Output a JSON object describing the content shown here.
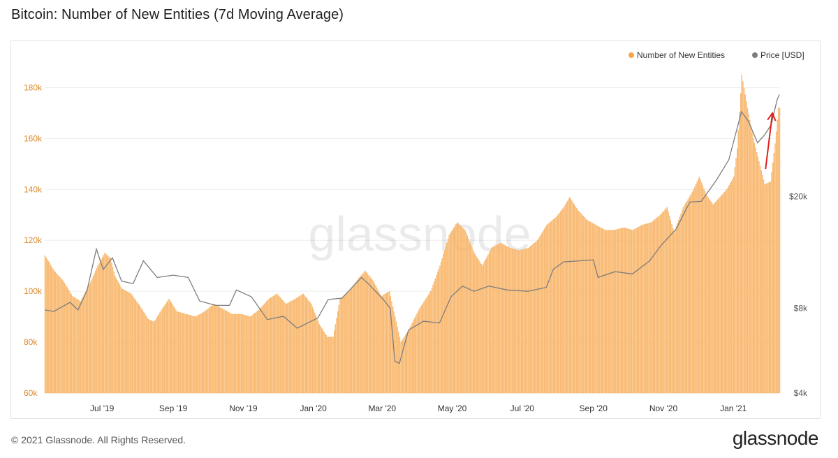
{
  "page": {
    "title": "Bitcoin: Number of New Entities (7d Moving Average)",
    "copyright": "© 2021 Glassnode. All Rights Reserved.",
    "logo_text": "glassnode",
    "watermark": "glassnode"
  },
  "colors": {
    "bar": "#f7a546",
    "bar_fill": "#f9c48a",
    "price": "#7d7d7d",
    "arrow": "#e0201b",
    "left_axis": "#d98a2e",
    "right_axis": "#555555",
    "grid": "#eeeeee"
  },
  "chart_data": {
    "type": "bar",
    "title": "Bitcoin: Number of New Entities (7d Moving Average)",
    "legend": {
      "position": "top-right",
      "entries": [
        {
          "name": "Number of New Entities",
          "color": "#f7a546"
        },
        {
          "name": "Price [USD]",
          "color": "#7d7d7d"
        }
      ]
    },
    "x_ticks": [
      "Jul '19",
      "Sep '19",
      "Nov '19",
      "Jan '20",
      "Mar '20",
      "May '20",
      "Jul '20",
      "Sep '20",
      "Nov '20",
      "Jan '21"
    ],
    "x_tick_dates": [
      "2019-07-01",
      "2019-09-01",
      "2019-11-01",
      "2020-01-01",
      "2020-03-01",
      "2020-05-01",
      "2020-07-01",
      "2020-09-01",
      "2020-11-01",
      "2021-01-01"
    ],
    "x_range": [
      "2019-05-12",
      "2021-02-10"
    ],
    "left_axis": {
      "ticks": [
        "60k",
        "80k",
        "100k",
        "120k",
        "140k",
        "160k",
        "180k"
      ],
      "tick_values": [
        60000,
        80000,
        100000,
        120000,
        140000,
        160000,
        180000
      ],
      "range": [
        60000,
        190000
      ]
    },
    "right_axis": {
      "scale": "log",
      "ticks": [
        "$4k",
        "$8k",
        "$20k"
      ],
      "tick_values": [
        4000,
        8000,
        20000
      ],
      "range": [
        4000,
        60000
      ]
    },
    "grid": true,
    "series": [
      {
        "name": "Number of New Entities",
        "kind": "bar",
        "points": [
          [
            "2019-05-12",
            114000
          ],
          [
            "2019-05-20",
            108000
          ],
          [
            "2019-05-28",
            104000
          ],
          [
            "2019-06-05",
            98000
          ],
          [
            "2019-06-12",
            96000
          ],
          [
            "2019-06-20",
            103000
          ],
          [
            "2019-06-27",
            110000
          ],
          [
            "2019-07-03",
            115000
          ],
          [
            "2019-07-08",
            113000
          ],
          [
            "2019-07-12",
            106000
          ],
          [
            "2019-07-18",
            101000
          ],
          [
            "2019-07-26",
            99000
          ],
          [
            "2019-08-03",
            94000
          ],
          [
            "2019-08-10",
            89000
          ],
          [
            "2019-08-15",
            88000
          ],
          [
            "2019-08-22",
            93000
          ],
          [
            "2019-08-28",
            97000
          ],
          [
            "2019-09-04",
            92000
          ],
          [
            "2019-09-12",
            91000
          ],
          [
            "2019-09-20",
            90000
          ],
          [
            "2019-09-28",
            92000
          ],
          [
            "2019-10-06",
            95000
          ],
          [
            "2019-10-14",
            93000
          ],
          [
            "2019-10-22",
            91000
          ],
          [
            "2019-10-30",
            91000
          ],
          [
            "2019-11-07",
            90000
          ],
          [
            "2019-11-15",
            93000
          ],
          [
            "2019-11-23",
            97000
          ],
          [
            "2019-11-30",
            99000
          ],
          [
            "2019-12-08",
            95000
          ],
          [
            "2019-12-16",
            97000
          ],
          [
            "2019-12-23",
            99000
          ],
          [
            "2019-12-30",
            95000
          ],
          [
            "2020-01-06",
            87000
          ],
          [
            "2020-01-13",
            82000
          ],
          [
            "2020-01-18",
            82000
          ],
          [
            "2020-01-24",
            97000
          ],
          [
            "2020-02-01",
            100000
          ],
          [
            "2020-02-09",
            105000
          ],
          [
            "2020-02-15",
            108000
          ],
          [
            "2020-02-22",
            104000
          ],
          [
            "2020-02-29",
            98000
          ],
          [
            "2020-03-07",
            100000
          ],
          [
            "2020-03-12",
            90000
          ],
          [
            "2020-03-17",
            80000
          ],
          [
            "2020-03-24",
            85000
          ],
          [
            "2020-04-02",
            93000
          ],
          [
            "2020-04-12",
            100000
          ],
          [
            "2020-04-20",
            110000
          ],
          [
            "2020-04-28",
            122000
          ],
          [
            "2020-05-05",
            127000
          ],
          [
            "2020-05-12",
            124000
          ],
          [
            "2020-05-20",
            115000
          ],
          [
            "2020-05-27",
            110000
          ],
          [
            "2020-06-04",
            117000
          ],
          [
            "2020-06-12",
            119000
          ],
          [
            "2020-06-20",
            117000
          ],
          [
            "2020-06-28",
            116000
          ],
          [
            "2020-07-06",
            117000
          ],
          [
            "2020-07-14",
            120000
          ],
          [
            "2020-07-22",
            126000
          ],
          [
            "2020-07-30",
            129000
          ],
          [
            "2020-08-06",
            133000
          ],
          [
            "2020-08-11",
            137000
          ],
          [
            "2020-08-18",
            132000
          ],
          [
            "2020-08-26",
            128000
          ],
          [
            "2020-09-03",
            126000
          ],
          [
            "2020-09-11",
            124000
          ],
          [
            "2020-09-19",
            124000
          ],
          [
            "2020-09-27",
            125000
          ],
          [
            "2020-10-05",
            124000
          ],
          [
            "2020-10-13",
            126000
          ],
          [
            "2020-10-21",
            127000
          ],
          [
            "2020-10-29",
            130000
          ],
          [
            "2020-11-04",
            133000
          ],
          [
            "2020-11-10",
            123000
          ],
          [
            "2020-11-18",
            133000
          ],
          [
            "2020-11-26",
            139000
          ],
          [
            "2020-12-02",
            145000
          ],
          [
            "2020-12-08",
            138000
          ],
          [
            "2020-12-14",
            134000
          ],
          [
            "2020-12-20",
            137000
          ],
          [
            "2020-12-26",
            140000
          ],
          [
            "2021-01-01",
            145000
          ],
          [
            "2021-01-04",
            156000
          ],
          [
            "2021-01-08",
            185000
          ],
          [
            "2021-01-13",
            172000
          ],
          [
            "2021-01-18",
            160000
          ],
          [
            "2021-01-23",
            151000
          ],
          [
            "2021-01-28",
            142000
          ],
          [
            "2021-02-02",
            143000
          ],
          [
            "2021-02-06",
            158000
          ],
          [
            "2021-02-09",
            172000
          ]
        ]
      },
      {
        "name": "Price [USD]",
        "kind": "line",
        "axis": "right",
        "points": [
          [
            "2019-05-12",
            7900
          ],
          [
            "2019-05-20",
            7800
          ],
          [
            "2019-06-03",
            8400
          ],
          [
            "2019-06-10",
            7900
          ],
          [
            "2019-06-18",
            9300
          ],
          [
            "2019-06-26",
            13000
          ],
          [
            "2019-07-02",
            11000
          ],
          [
            "2019-07-10",
            12100
          ],
          [
            "2019-07-18",
            10000
          ],
          [
            "2019-07-28",
            9800
          ],
          [
            "2019-08-06",
            11800
          ],
          [
            "2019-08-18",
            10300
          ],
          [
            "2019-09-01",
            10500
          ],
          [
            "2019-09-14",
            10300
          ],
          [
            "2019-09-24",
            8500
          ],
          [
            "2019-10-08",
            8200
          ],
          [
            "2019-10-20",
            8200
          ],
          [
            "2019-10-26",
            9300
          ],
          [
            "2019-11-08",
            8800
          ],
          [
            "2019-11-22",
            7300
          ],
          [
            "2019-12-06",
            7500
          ],
          [
            "2019-12-18",
            6800
          ],
          [
            "2020-01-05",
            7400
          ],
          [
            "2020-01-14",
            8600
          ],
          [
            "2020-01-26",
            8700
          ],
          [
            "2020-02-12",
            10300
          ],
          [
            "2020-02-20",
            9600
          ],
          [
            "2020-03-02",
            8600
          ],
          [
            "2020-03-08",
            8000
          ],
          [
            "2020-03-12",
            5200
          ],
          [
            "2020-03-16",
            5100
          ],
          [
            "2020-03-24",
            6700
          ],
          [
            "2020-04-06",
            7200
          ],
          [
            "2020-04-20",
            7100
          ],
          [
            "2020-04-30",
            8800
          ],
          [
            "2020-05-10",
            9600
          ],
          [
            "2020-05-20",
            9200
          ],
          [
            "2020-06-02",
            9600
          ],
          [
            "2020-06-18",
            9300
          ],
          [
            "2020-07-06",
            9200
          ],
          [
            "2020-07-22",
            9500
          ],
          [
            "2020-07-28",
            11000
          ],
          [
            "2020-08-06",
            11700
          ],
          [
            "2020-08-20",
            11800
          ],
          [
            "2020-09-01",
            11900
          ],
          [
            "2020-09-05",
            10300
          ],
          [
            "2020-09-20",
            10800
          ],
          [
            "2020-10-05",
            10600
          ],
          [
            "2020-10-20",
            11800
          ],
          [
            "2020-10-30",
            13400
          ],
          [
            "2020-11-12",
            15300
          ],
          [
            "2020-11-24",
            19100
          ],
          [
            "2020-12-04",
            19200
          ],
          [
            "2020-12-17",
            22800
          ],
          [
            "2020-12-28",
            27000
          ],
          [
            "2021-01-08",
            40000
          ],
          [
            "2021-01-14",
            37000
          ],
          [
            "2021-01-22",
            31000
          ],
          [
            "2021-01-28",
            33000
          ],
          [
            "2021-02-03",
            36000
          ],
          [
            "2021-02-08",
            44000
          ],
          [
            "2021-02-10",
            46000
          ]
        ]
      }
    ],
    "annotations": [
      {
        "type": "arrow",
        "color": "#e0201b",
        "from": [
          "2021-01-29",
          148000
        ],
        "to": [
          "2021-02-04",
          170000
        ]
      }
    ]
  }
}
